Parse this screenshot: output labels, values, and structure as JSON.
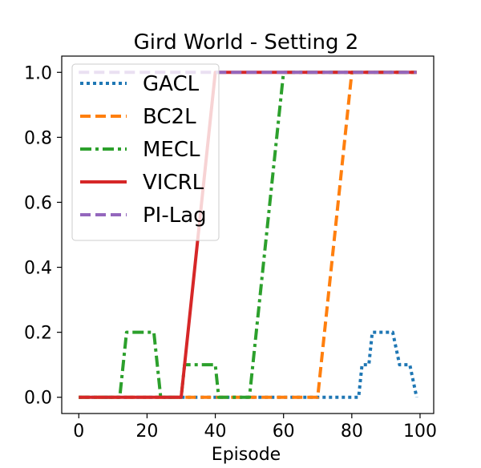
{
  "chart_data": {
    "type": "line",
    "title": "Gird World - Setting 2",
    "xlabel": "Episode",
    "ylabel": "",
    "xlim": [
      -5,
      104
    ],
    "ylim": [
      -0.05,
      1.05
    ],
    "xticks": [
      0,
      20,
      40,
      60,
      80,
      100
    ],
    "xtick_labels": [
      "0",
      "20",
      "40",
      "60",
      "80",
      "100"
    ],
    "yticks": [
      0.0,
      0.2,
      0.4,
      0.6,
      0.8,
      1.0
    ],
    "ytick_labels": [
      "0.0",
      "0.2",
      "0.4",
      "0.6",
      "0.8",
      "1.0"
    ],
    "grid": false,
    "legend_position": "top-left",
    "series": [
      {
        "name": "GACL",
        "color": "#1f77b4",
        "style": "dotted",
        "x": [
          0,
          70,
          82,
          83,
          85,
          86,
          88,
          92,
          94,
          96,
          97,
          99
        ],
        "y": [
          0,
          0,
          0,
          0.1,
          0.1,
          0.2,
          0.2,
          0.2,
          0.1,
          0.1,
          0.1,
          0
        ]
      },
      {
        "name": "BC2L",
        "color": "#ff7f0e",
        "style": "dashed",
        "x": [
          0,
          70,
          80,
          99
        ],
        "y": [
          0,
          0,
          1,
          1
        ]
      },
      {
        "name": "MECL",
        "color": "#2ca02c",
        "style": "dashdot",
        "x": [
          0,
          12,
          14,
          22,
          24,
          30,
          31,
          40,
          41,
          50,
          60,
          99
        ],
        "y": [
          0,
          0,
          0.2,
          0.2,
          0,
          0,
          0.1,
          0.1,
          0,
          0,
          1,
          1
        ]
      },
      {
        "name": "VICRL",
        "color": "#d62728",
        "style": "solid",
        "x": [
          0,
          30,
          40,
          99
        ],
        "y": [
          0,
          0,
          1,
          1
        ]
      },
      {
        "name": "PI-Lag",
        "color": "#9467bd",
        "style": "dashed",
        "x": [
          0,
          99
        ],
        "y": [
          1,
          1
        ]
      }
    ]
  }
}
